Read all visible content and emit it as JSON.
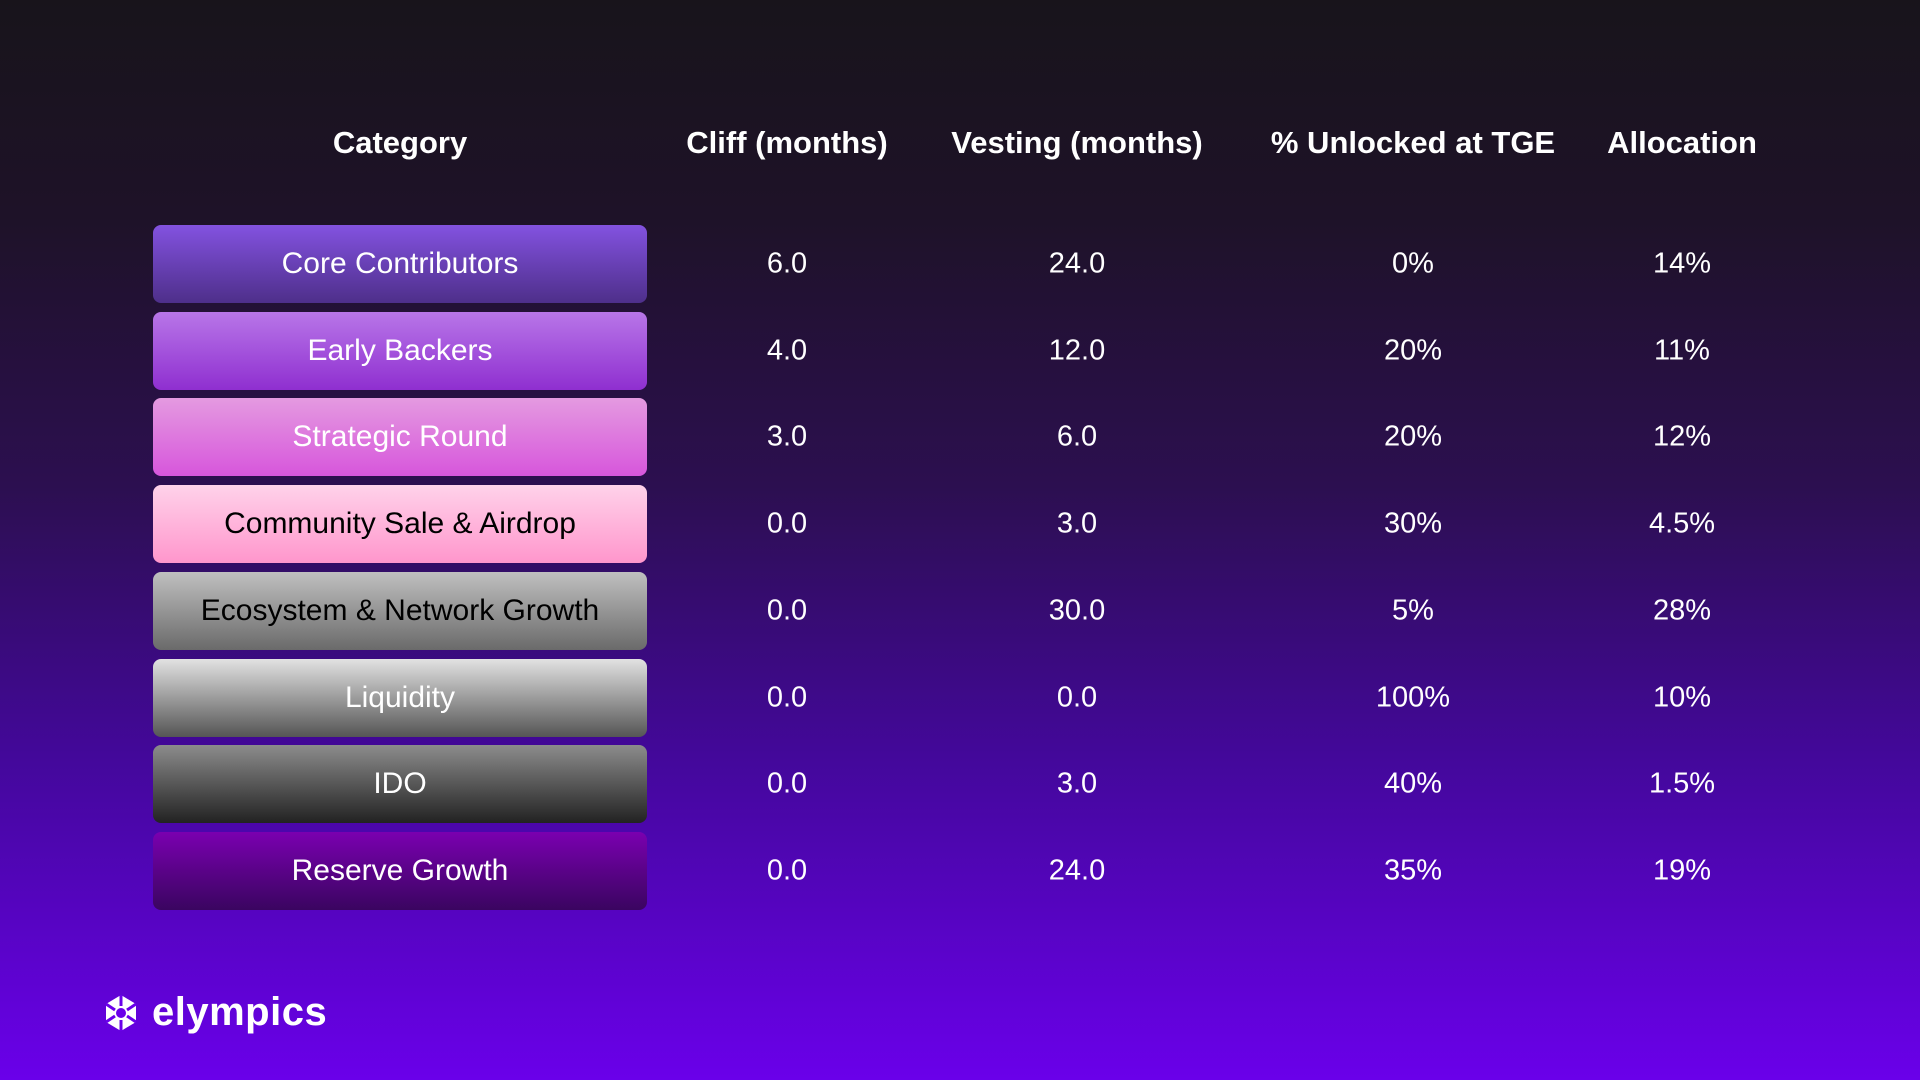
{
  "headers": [
    "Category",
    "Cliff (months)",
    "Vesting (months)",
    "% Unlocked at TGE",
    "Allocation"
  ],
  "rows": [
    {
      "category": "Core Contributors",
      "cliff": "6.0",
      "vesting": "24.0",
      "unlocked": "0%",
      "allocation": "14%",
      "color_top": "#8352e0",
      "color_bottom": "#4e2f8a",
      "text_color": "#ffffff"
    },
    {
      "category": "Early Backers",
      "cliff": "4.0",
      "vesting": "12.0",
      "unlocked": "20%",
      "allocation": "11%",
      "color_top": "#b876e8",
      "color_bottom": "#8f2fd0",
      "text_color": "#ffffff"
    },
    {
      "category": "Strategic Round",
      "cliff": "3.0",
      "vesting": "6.0",
      "unlocked": "20%",
      "allocation": "12%",
      "color_top": "#e49ae0",
      "color_bottom": "#d756dc",
      "text_color": "#ffffff"
    },
    {
      "category": "Community Sale & Airdrop",
      "cliff": "0.0",
      "vesting": "3.0",
      "unlocked": "30%",
      "allocation": "4.5%",
      "color_top": "#ffd2ea",
      "color_bottom": "#ff96cc",
      "text_color": "#000000"
    },
    {
      "category": "Ecosystem & Network Growth",
      "cliff": "0.0",
      "vesting": "30.0",
      "unlocked": "5%",
      "allocation": "28%",
      "color_top": "#c0c0c0",
      "color_bottom": "#6a6a6a",
      "text_color": "#000000"
    },
    {
      "category": "Liquidity",
      "cliff": "0.0",
      "vesting": "0.0",
      "unlocked": "100%",
      "allocation": "10%",
      "color_top": "#e2e2e2",
      "color_bottom": "#555555",
      "text_color": "#ffffff"
    },
    {
      "category": "IDO",
      "cliff": "0.0",
      "vesting": "3.0",
      "unlocked": "40%",
      "allocation": "1.5%",
      "color_top": "#8c8c8c",
      "color_bottom": "#222222",
      "text_color": "#ffffff"
    },
    {
      "category": "Reserve Growth",
      "cliff": "0.0",
      "vesting": "24.0",
      "unlocked": "35%",
      "allocation": "19%",
      "color_top": "#7a00b0",
      "color_bottom": "#3a0560",
      "text_color": "#ffffff"
    }
  ],
  "brand": {
    "name": "elympics",
    "icon": "hexagon-logo-icon"
  }
}
